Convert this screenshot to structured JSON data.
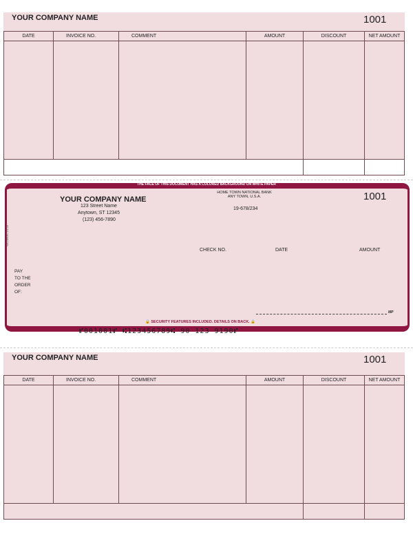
{
  "stub_top": {
    "company": "YOUR COMPANY NAME",
    "number": "1001",
    "columns": [
      "DATE",
      "INVOICE NO.",
      "COMMENT",
      "AMOUNT",
      "DISCOUNT",
      "NET AMOUNT"
    ]
  },
  "check": {
    "banner": "THE FACE OF THIS DOCUMENT HAS A COLORED BACKGROUND ON WHITE PAPER",
    "company": "YOUR COMPANY NAME",
    "street": "123 Street Name",
    "city": "Anytown, ST 12345",
    "phone": "(123) 456-7890",
    "bank_name": "HOME TOWN NATIONAL BANK",
    "bank_city": "ANY TOWN, U.S.A.",
    "routing_fraction": "19-678/234",
    "number": "1001",
    "check_no_label": "CHECK NO.",
    "date_label": "DATE",
    "amount_label": "AMOUNT",
    "pay_lines": [
      "PAY",
      "TO THE",
      "ORDER",
      "OF:"
    ],
    "signature_mark": "MP",
    "side_code": "WLD060/C-01-03",
    "security": "SECURITY FEATURES INCLUDED. DETAILS ON BACK.",
    "micr": "⑈001001⑈ ⑆123456789⑆ 90 123 9190⑈",
    "accent": "#8e1640"
  },
  "stub_bottom": {
    "company": "YOUR COMPANY NAME",
    "number": "1001",
    "columns": [
      "DATE",
      "INVOICE NO.",
      "COMMENT",
      "AMOUNT",
      "DISCOUNT",
      "NET AMOUNT"
    ]
  }
}
